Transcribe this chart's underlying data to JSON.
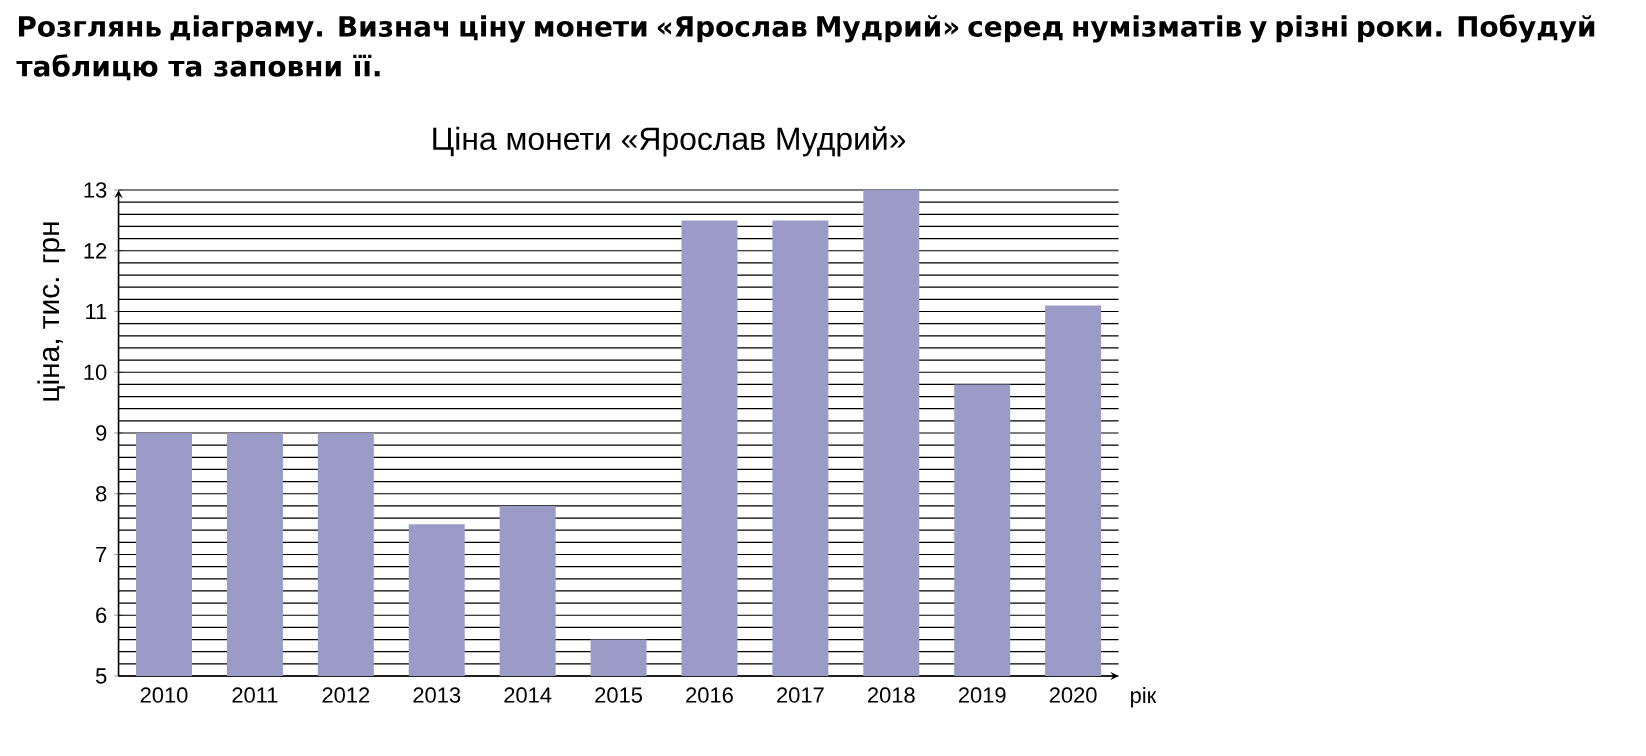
{
  "chart_data": {
    "type": "bar",
    "title": "Ціна монети «Ярослав Мудрий»",
    "xlabel": "рік",
    "ylabel": "ціна, тис. грн",
    "annotations": [
      "Розглянь діаграму. Визнач ціну монети «Ярослав Мудрий» серед нумізматів у різні роки. Побудуй таблицю та заповни її."
    ],
    "categories": [
      "2010",
      "2011",
      "2012",
      "2013",
      "2014",
      "2015",
      "2016",
      "2017",
      "2018",
      "2019",
      "2020"
    ],
    "values": [
      9,
      9,
      9,
      7.5,
      7.8,
      5.6,
      12.5,
      12.5,
      13,
      9.8,
      11.1
    ],
    "color": "#9b9bc8",
    "ylim": [
      5,
      13
    ],
    "yticks": [
      5,
      6,
      7,
      8,
      9,
      10,
      11,
      12,
      13
    ],
    "grid": true
  }
}
